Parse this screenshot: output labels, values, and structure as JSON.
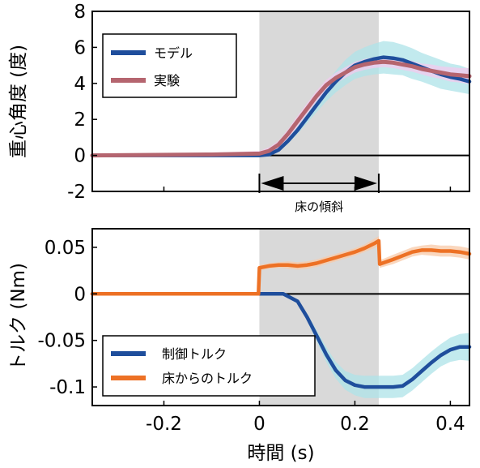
{
  "chart_data": [
    {
      "type": "line",
      "ylabel": "重心角度 (度)",
      "xlim": [
        -0.35,
        0.44
      ],
      "ylim": [
        -2,
        8
      ],
      "yticks": [
        -2,
        0,
        2,
        4,
        6,
        8
      ],
      "ytick_labels": [
        "-2",
        "0",
        "2",
        "4",
        "6",
        "8"
      ],
      "shaded_region": [
        0,
        0.25
      ],
      "annotation": {
        "label": "床の傾斜",
        "x_start": 0,
        "x_end": 0.25
      },
      "legend": {
        "position": "top-left"
      },
      "series": [
        {
          "name": "モデル",
          "color": "#1f4e9c",
          "band_color": "#aee3e8",
          "x": [
            -0.35,
            -0.1,
            0,
            0.02,
            0.04,
            0.06,
            0.08,
            0.1,
            0.12,
            0.14,
            0.16,
            0.18,
            0.2,
            0.22,
            0.24,
            0.26,
            0.28,
            0.3,
            0.32,
            0.34,
            0.36,
            0.38,
            0.4,
            0.42,
            0.44
          ],
          "y": [
            0,
            0,
            0,
            0.05,
            0.3,
            0.8,
            1.4,
            2.1,
            2.8,
            3.5,
            4.1,
            4.6,
            5.0,
            5.2,
            5.35,
            5.45,
            5.4,
            5.3,
            5.1,
            4.9,
            4.7,
            4.5,
            4.35,
            4.25,
            4.1
          ],
          "band_halfwidth": [
            0,
            0,
            0,
            0.05,
            0.1,
            0.15,
            0.2,
            0.3,
            0.4,
            0.5,
            0.6,
            0.7,
            0.75,
            0.8,
            0.85,
            0.9,
            0.9,
            0.85,
            0.85,
            0.8,
            0.8,
            0.8,
            0.75,
            0.75,
            0.7
          ]
        },
        {
          "name": "実験",
          "color": "#b5656f",
          "band_color": "#f3c9ee",
          "x": [
            -0.35,
            -0.1,
            0,
            0.02,
            0.04,
            0.06,
            0.08,
            0.1,
            0.12,
            0.14,
            0.16,
            0.18,
            0.2,
            0.22,
            0.24,
            0.26,
            0.28,
            0.3,
            0.32,
            0.34,
            0.36,
            0.38,
            0.4,
            0.42,
            0.44
          ],
          "y": [
            0,
            0.05,
            0.1,
            0.25,
            0.6,
            1.2,
            1.9,
            2.6,
            3.3,
            3.9,
            4.3,
            4.6,
            4.9,
            5.05,
            5.15,
            5.2,
            5.15,
            5.05,
            4.95,
            4.8,
            4.7,
            4.6,
            4.5,
            4.45,
            4.4
          ],
          "band_halfwidth": [
            0.05,
            0.1,
            0.15,
            0.2,
            0.2,
            0.25,
            0.3,
            0.3,
            0.3,
            0.3,
            0.3,
            0.3,
            0.3,
            0.3,
            0.3,
            0.3,
            0.3,
            0.3,
            0.3,
            0.3,
            0.35,
            0.35,
            0.4,
            0.4,
            0.45
          ]
        }
      ]
    },
    {
      "type": "line",
      "ylabel": "トルク (Nm)",
      "xlabel": "時間 (s)",
      "xlim": [
        -0.35,
        0.44
      ],
      "ylim": [
        -0.12,
        0.07
      ],
      "yticks": [
        -0.1,
        -0.05,
        0,
        0.05
      ],
      "ytick_labels": [
        "-0.1",
        "-0.05",
        "0",
        "0.05"
      ],
      "xticks": [
        -0.2,
        0,
        0.2,
        0.4
      ],
      "xtick_labels": [
        "-0.2",
        "0",
        "0.2",
        "0.4"
      ],
      "shaded_region": [
        0,
        0.25
      ],
      "legend": {
        "position": "bottom-left"
      },
      "series": [
        {
          "name": "制御トルク",
          "color": "#1f4e9c",
          "band_color": "#aee3e8",
          "x": [
            -0.35,
            0,
            0.05,
            0.08,
            0.1,
            0.12,
            0.14,
            0.16,
            0.18,
            0.2,
            0.22,
            0.25,
            0.28,
            0.3,
            0.32,
            0.34,
            0.36,
            0.38,
            0.4,
            0.42,
            0.44
          ],
          "y": [
            0,
            0,
            0,
            -0.008,
            -0.025,
            -0.045,
            -0.065,
            -0.082,
            -0.093,
            -0.098,
            -0.1,
            -0.1,
            -0.1,
            -0.099,
            -0.092,
            -0.083,
            -0.074,
            -0.066,
            -0.06,
            -0.057,
            -0.057
          ],
          "band_halfwidth": [
            0,
            0,
            0,
            0.002,
            0.004,
            0.006,
            0.008,
            0.009,
            0.01,
            0.011,
            0.012,
            0.012,
            0.012,
            0.012,
            0.012,
            0.012,
            0.012,
            0.012,
            0.013,
            0.014,
            0.015
          ]
        },
        {
          "name": "床からのトルク",
          "color": "#ed7125",
          "band_color": "#f8c9a8",
          "x": [
            -0.35,
            -0.002,
            0,
            0.02,
            0.04,
            0.06,
            0.08,
            0.1,
            0.12,
            0.14,
            0.16,
            0.18,
            0.2,
            0.22,
            0.24,
            0.25,
            0.252,
            0.28,
            0.3,
            0.32,
            0.34,
            0.36,
            0.38,
            0.4,
            0.42,
            0.44
          ],
          "y": [
            0,
            0,
            0.028,
            0.03,
            0.031,
            0.031,
            0.03,
            0.031,
            0.033,
            0.036,
            0.039,
            0.042,
            0.045,
            0.049,
            0.054,
            0.057,
            0.032,
            0.037,
            0.041,
            0.045,
            0.047,
            0.047,
            0.046,
            0.046,
            0.045,
            0.043
          ],
          "band_halfwidth": [
            0,
            0,
            0.003,
            0.003,
            0.003,
            0.004,
            0.004,
            0.004,
            0.004,
            0.004,
            0.004,
            0.004,
            0.004,
            0.004,
            0.005,
            0.005,
            0.004,
            0.005,
            0.005,
            0.005,
            0.005,
            0.006,
            0.006,
            0.006,
            0.006,
            0.006
          ]
        }
      ]
    }
  ]
}
